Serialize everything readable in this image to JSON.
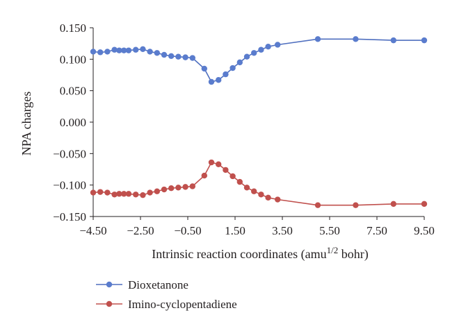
{
  "chart_data": {
    "type": "line",
    "title": "",
    "xlabel": "Intrinsic reaction coordinates (amu",
    "xlabel_sup": "1/2",
    "xlabel_tail": " bohr)",
    "ylabel": "NPA charges",
    "xlim": [
      -4.5,
      9.5
    ],
    "ylim": [
      -0.15,
      0.15
    ],
    "xticks": [
      "−4.50",
      "−2.50",
      "−0.50",
      "1.50",
      "3.50",
      "5.50",
      "7.50",
      "9.50"
    ],
    "xtick_values": [
      -4.5,
      -2.5,
      -0.5,
      1.5,
      3.5,
      5.5,
      7.5,
      9.5
    ],
    "yticks": [
      "0.150",
      "0.100",
      "0.050",
      "0.000",
      "−0.050",
      "−0.100",
      "−0.150"
    ],
    "ytick_values": [
      0.15,
      0.1,
      0.05,
      0.0,
      -0.05,
      -0.1,
      -0.15
    ],
    "grid": false,
    "legend_position": "bottom-left",
    "series": [
      {
        "name": "Dioxetanone",
        "color": "#4f6fbf",
        "marker_color": "#5a7ccd",
        "x": [
          -4.5,
          -4.2,
          -3.9,
          -3.6,
          -3.4,
          -3.2,
          -3.0,
          -2.7,
          -2.4,
          -2.1,
          -1.8,
          -1.5,
          -1.2,
          -0.9,
          -0.6,
          -0.3,
          0.2,
          0.5,
          0.8,
          1.1,
          1.4,
          1.7,
          2.0,
          2.3,
          2.6,
          2.9,
          3.3,
          5.0,
          6.6,
          8.2,
          9.5
        ],
        "y": [
          0.112,
          0.111,
          0.112,
          0.115,
          0.114,
          0.114,
          0.114,
          0.115,
          0.116,
          0.112,
          0.11,
          0.107,
          0.105,
          0.104,
          0.103,
          0.102,
          0.085,
          0.064,
          0.067,
          0.076,
          0.086,
          0.095,
          0.104,
          0.11,
          0.115,
          0.12,
          0.123,
          0.132,
          0.132,
          0.13,
          0.13
        ]
      },
      {
        "name": "Imino-cyclopentadiene",
        "color": "#c0504d",
        "marker_color": "#c0504d",
        "x": [
          -4.5,
          -4.2,
          -3.9,
          -3.6,
          -3.4,
          -3.2,
          -3.0,
          -2.7,
          -2.4,
          -2.1,
          -1.8,
          -1.5,
          -1.2,
          -0.9,
          -0.6,
          -0.3,
          0.2,
          0.5,
          0.8,
          1.1,
          1.4,
          1.7,
          2.0,
          2.3,
          2.6,
          2.9,
          3.3,
          5.0,
          6.6,
          8.2,
          9.5
        ],
        "y": [
          -0.112,
          -0.111,
          -0.112,
          -0.115,
          -0.114,
          -0.114,
          -0.114,
          -0.115,
          -0.116,
          -0.112,
          -0.11,
          -0.107,
          -0.105,
          -0.104,
          -0.103,
          -0.102,
          -0.085,
          -0.064,
          -0.067,
          -0.076,
          -0.086,
          -0.095,
          -0.104,
          -0.11,
          -0.115,
          -0.12,
          -0.123,
          -0.132,
          -0.132,
          -0.13,
          -0.13
        ]
      }
    ]
  }
}
